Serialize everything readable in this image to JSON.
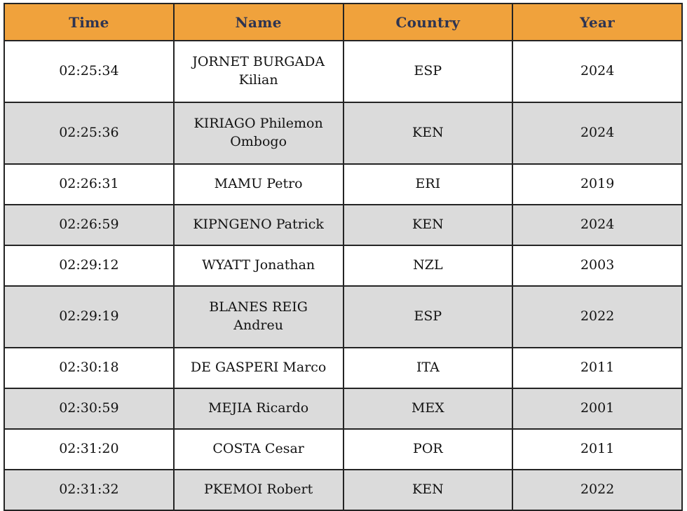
{
  "colors": {
    "header_bg": "#F0A23C",
    "header_text": "#2D3452",
    "row_bg": "#FFFFFF",
    "row_alt_bg": "#DBDBDB",
    "border": "#242424"
  },
  "chart_data": {
    "type": "table",
    "columns": [
      {
        "key": "time",
        "label": "Time"
      },
      {
        "key": "name",
        "label": "Name"
      },
      {
        "key": "country",
        "label": "Country"
      },
      {
        "key": "year",
        "label": "Year"
      }
    ],
    "rows": [
      {
        "time": "02:25:34",
        "name": "JORNET BURGADA Kilian",
        "name_lines": [
          "JORNET BURGADA",
          "Kilian"
        ],
        "country": "ESP",
        "year": "2024"
      },
      {
        "time": "02:25:36",
        "name": "KIRIAGO Philemon Ombogo",
        "name_lines": [
          "KIRIAGO Philemon",
          "Ombogo"
        ],
        "country": "KEN",
        "year": "2024"
      },
      {
        "time": "02:26:31",
        "name": "MAMU Petro",
        "name_lines": [
          "MAMU Petro"
        ],
        "country": "ERI",
        "year": "2019"
      },
      {
        "time": "02:26:59",
        "name": "KIPNGENO Patrick",
        "name_lines": [
          "KIPNGENO Patrick"
        ],
        "country": "KEN",
        "year": "2024"
      },
      {
        "time": "02:29:12",
        "name": "WYATT Jonathan",
        "name_lines": [
          "WYATT Jonathan"
        ],
        "country": "NZL",
        "year": "2003"
      },
      {
        "time": "02:29:19",
        "name": "BLANES REIG Andreu",
        "name_lines": [
          "BLANES REIG",
          "Andreu"
        ],
        "country": "ESP",
        "year": "2022"
      },
      {
        "time": "02:30:18",
        "name": "DE GASPERI Marco",
        "name_lines": [
          "DE GASPERI Marco"
        ],
        "country": "ITA",
        "year": "2011"
      },
      {
        "time": "02:30:59",
        "name": "MEJIA Ricardo",
        "name_lines": [
          "MEJIA Ricardo"
        ],
        "country": "MEX",
        "year": "2001"
      },
      {
        "time": "02:31:20",
        "name": "COSTA Cesar",
        "name_lines": [
          "COSTA Cesar"
        ],
        "country": "POR",
        "year": "2011"
      },
      {
        "time": "02:31:32",
        "name": "PKEMOI Robert",
        "name_lines": [
          "PKEMOI Robert"
        ],
        "country": "KEN",
        "year": "2022"
      }
    ]
  }
}
